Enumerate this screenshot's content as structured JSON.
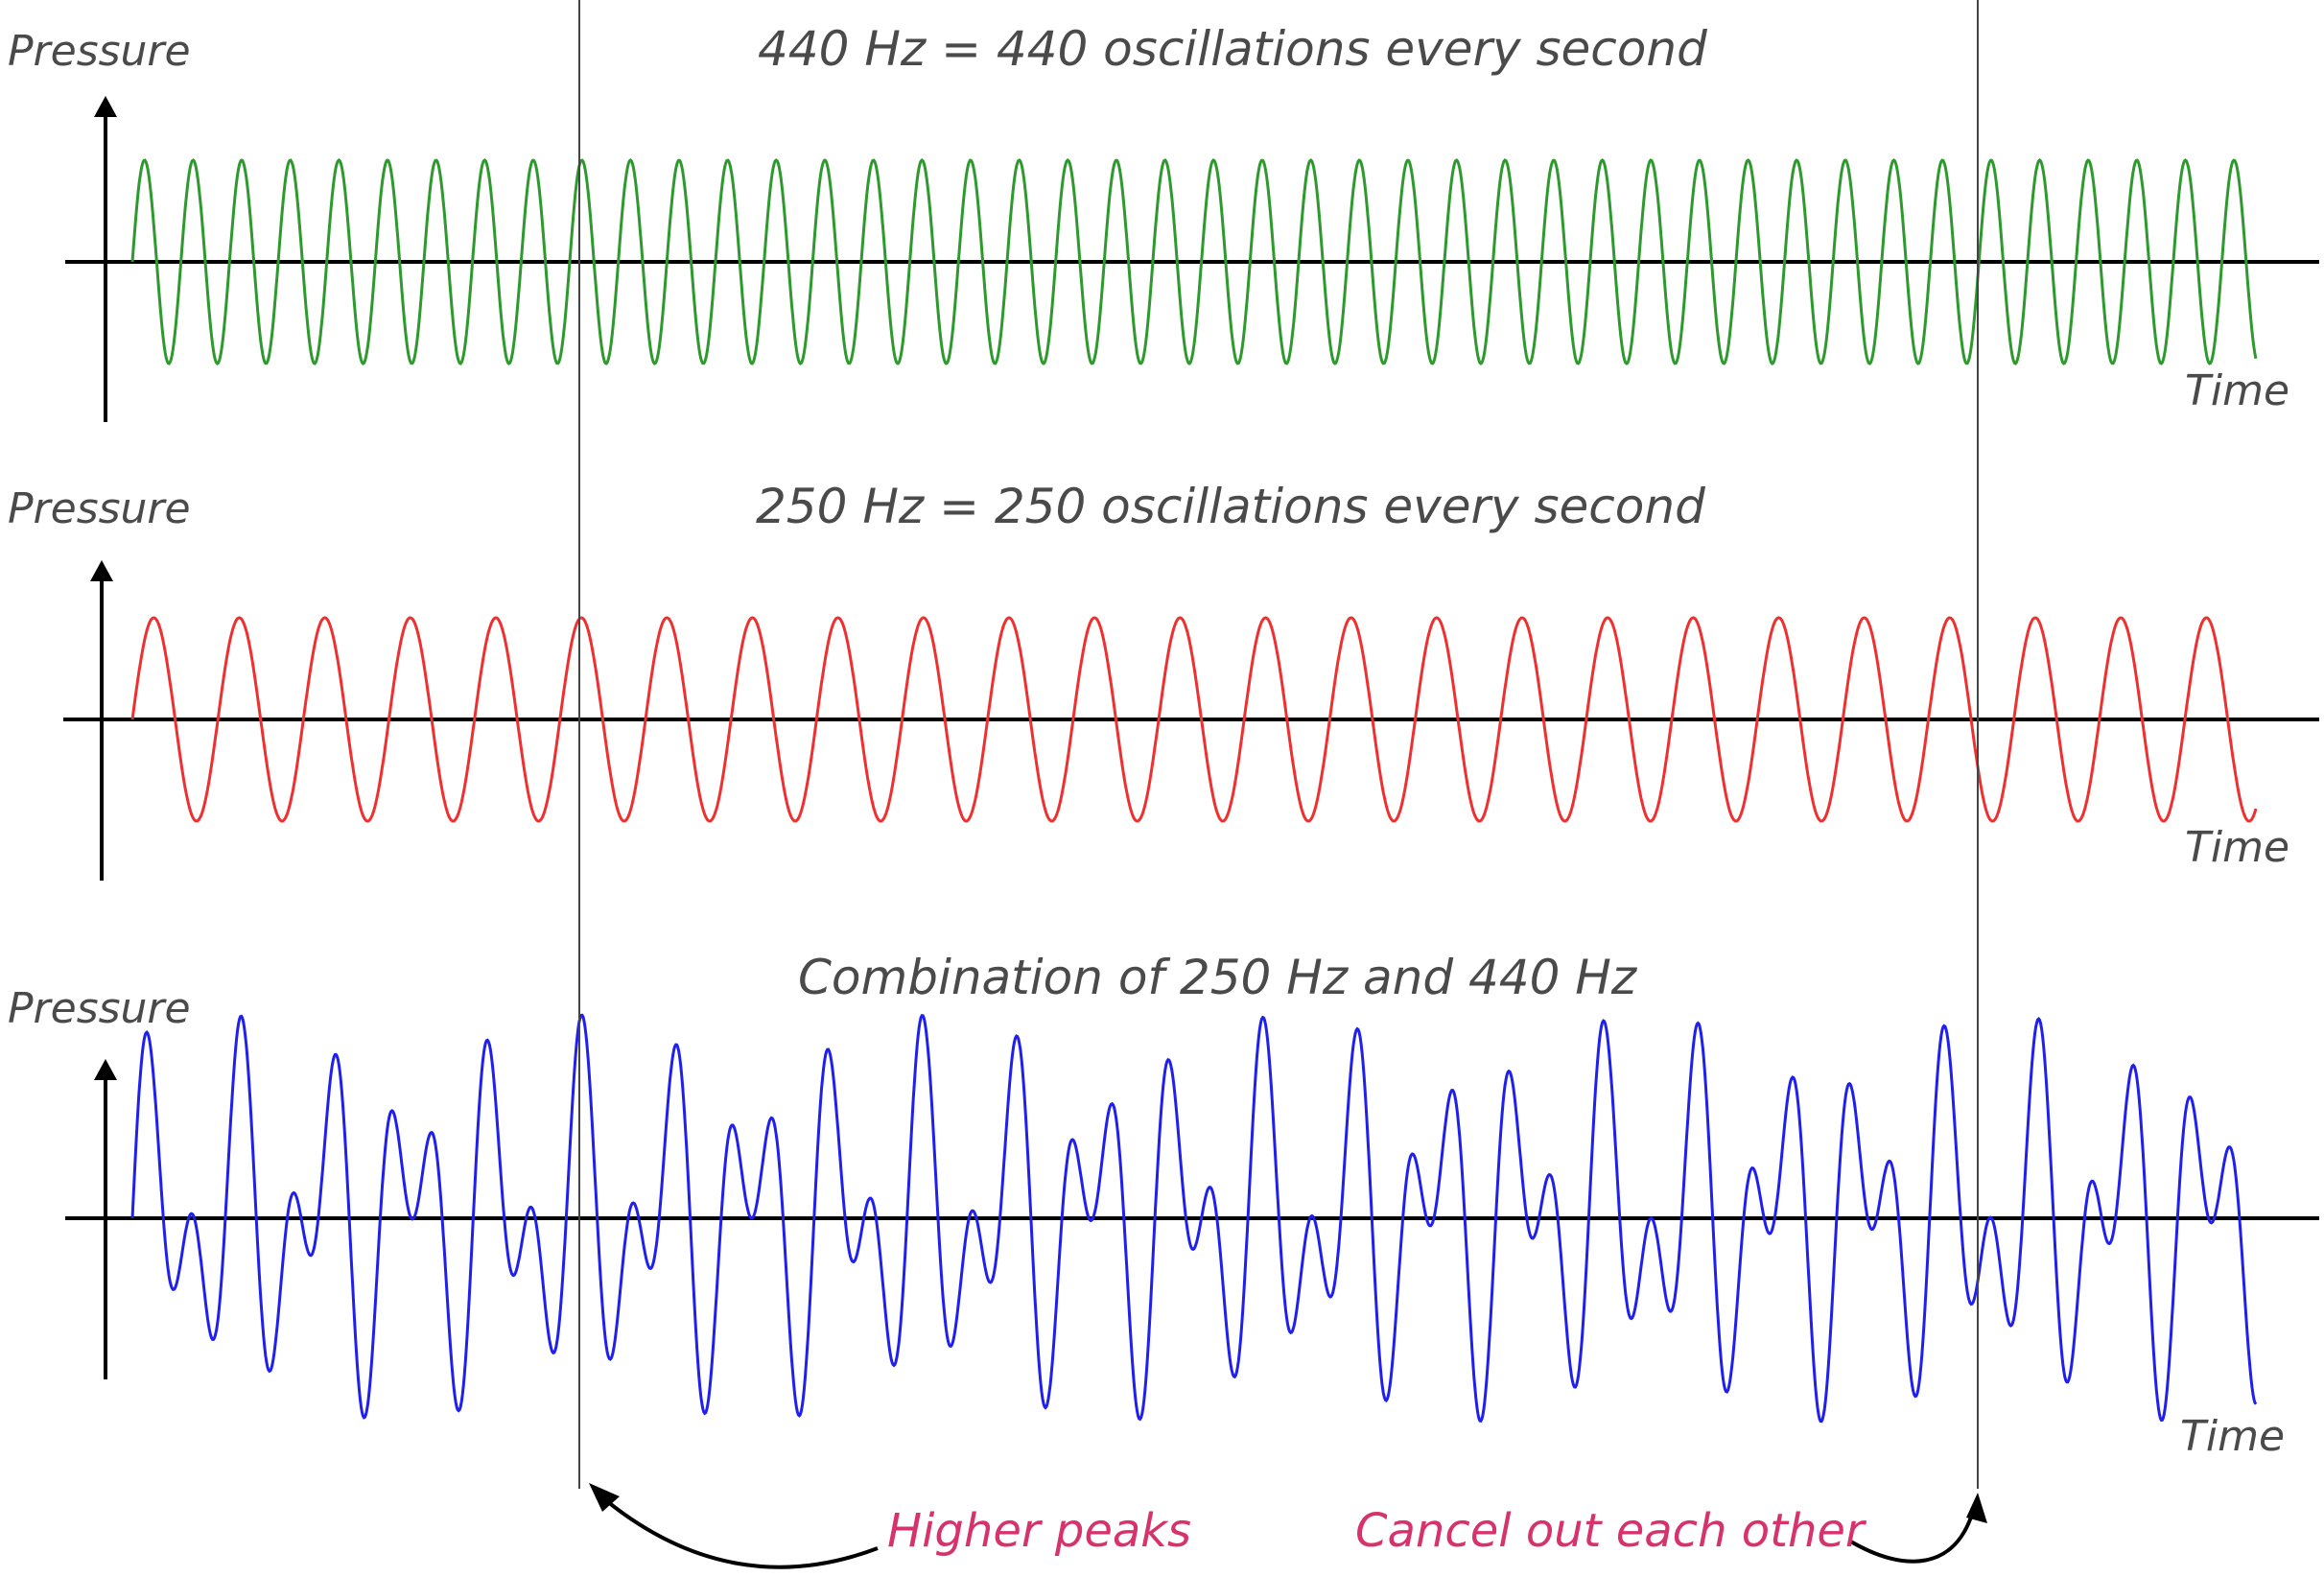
{
  "chart_data": [
    {
      "type": "line",
      "title": "440 Hz = 440 oscillations every second",
      "ylabel": "Pressure",
      "xlabel": "Time",
      "frequency_hz": 440,
      "series": [
        {
          "color": "#2e9a2e"
        }
      ]
    },
    {
      "type": "line",
      "title": "250 Hz = 250 oscillations every second",
      "ylabel": "Pressure",
      "xlabel": "Time",
      "frequency_hz": 250,
      "series": [
        {
          "color": "#ee3030"
        }
      ]
    },
    {
      "type": "line",
      "title": "Combination of 250 Hz and 440 Hz",
      "ylabel": "Pressure",
      "xlabel": "Time",
      "frequency_hz": [
        250,
        440
      ],
      "series": [
        {
          "color": "#2020ee"
        }
      ]
    }
  ],
  "annotations": {
    "higher_peaks": "Higher peaks",
    "cancel_out": "Cancel out each other",
    "note_color": "#d6336c"
  }
}
